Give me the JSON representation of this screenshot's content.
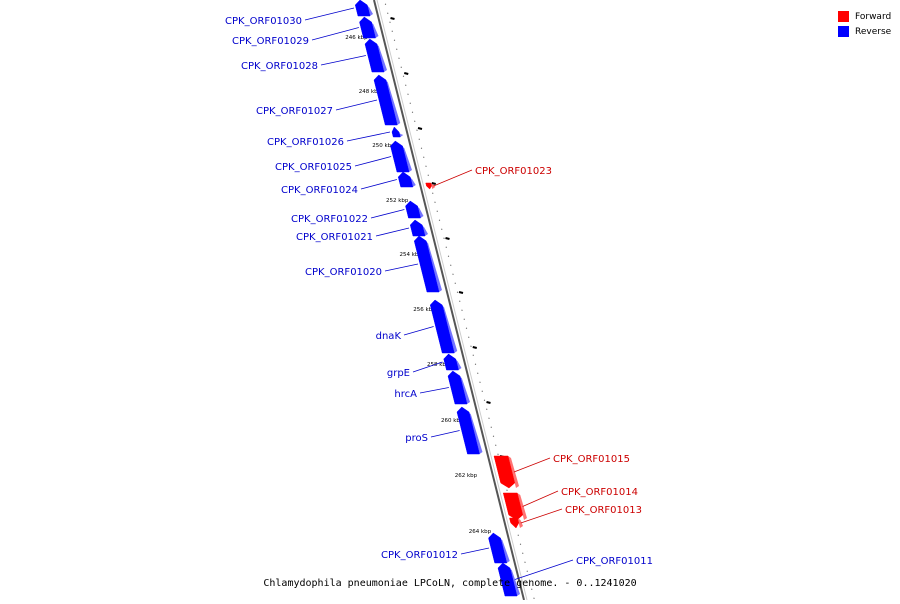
{
  "colors": {
    "forward": "#ff0000",
    "reverse": "#0000ff",
    "forward_text": "#cc0000",
    "reverse_text": "#0000cc"
  },
  "legend": {
    "forward_label": "Forward",
    "reverse_label": "Reverse"
  },
  "caption": "Chlamydophila pneumoniae LPCoLN, complete genome. - 0..1241020",
  "ticks": [
    "246 kbp",
    "248 kbp",
    "250 kbp",
    "252 kbp",
    "254 kbp",
    "256 kbp",
    "258 kbp",
    "260 kbp",
    "262 kbp",
    "264 kbp"
  ],
  "genes": [
    {
      "label": "CPK_ORF01030",
      "strand": "reverse"
    },
    {
      "label": "CPK_ORF01029",
      "strand": "reverse"
    },
    {
      "label": "CPK_ORF01028",
      "strand": "reverse"
    },
    {
      "label": "CPK_ORF01027",
      "strand": "reverse"
    },
    {
      "label": "CPK_ORF01026",
      "strand": "reverse"
    },
    {
      "label": "CPK_ORF01025",
      "strand": "reverse"
    },
    {
      "label": "CPK_ORF01024",
      "strand": "reverse"
    },
    {
      "label": "CPK_ORF01023",
      "strand": "forward"
    },
    {
      "label": "CPK_ORF01022",
      "strand": "reverse"
    },
    {
      "label": "CPK_ORF01021",
      "strand": "reverse"
    },
    {
      "label": "CPK_ORF01020",
      "strand": "reverse"
    },
    {
      "label": "dnaK",
      "strand": "reverse"
    },
    {
      "label": "grpE",
      "strand": "reverse"
    },
    {
      "label": "hrcA",
      "strand": "reverse"
    },
    {
      "label": "proS",
      "strand": "reverse"
    },
    {
      "label": "CPK_ORF01015",
      "strand": "forward"
    },
    {
      "label": "CPK_ORF01014",
      "strand": "forward"
    },
    {
      "label": "CPK_ORF01013",
      "strand": "forward"
    },
    {
      "label": "CPK_ORF01012",
      "strand": "reverse"
    },
    {
      "label": "CPK_ORF01011",
      "strand": "reverse"
    }
  ]
}
